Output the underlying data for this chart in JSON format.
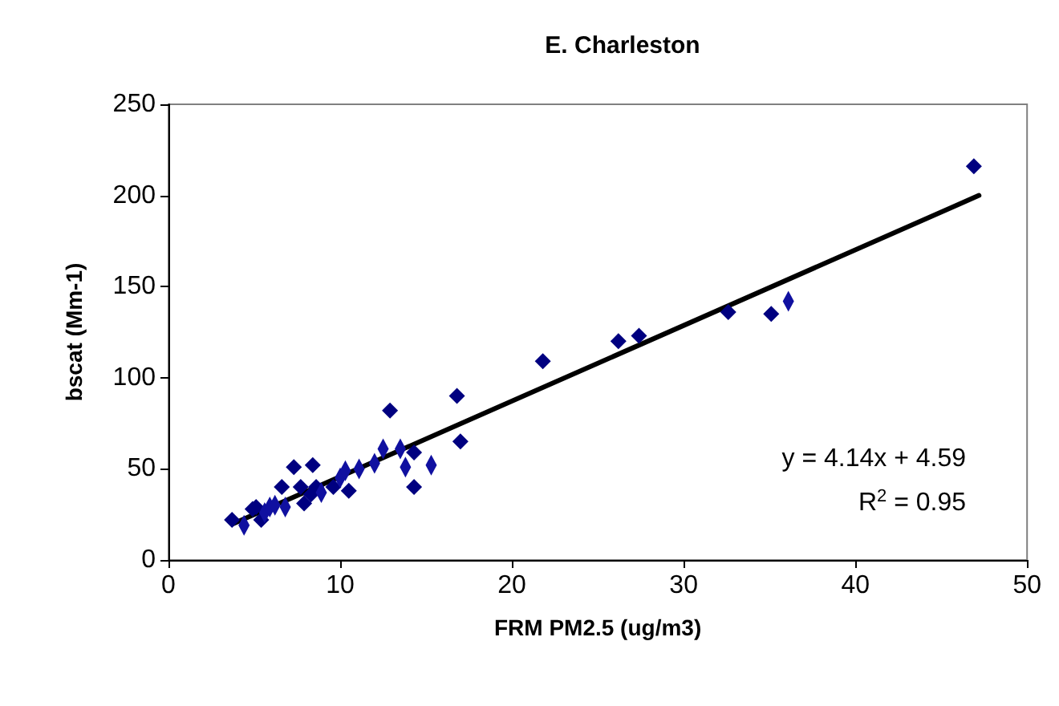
{
  "chart_data": {
    "type": "scatter",
    "title": "E. Charleston",
    "xlabel": "FRM PM2.5 (ug/m3)",
    "ylabel": "bscat (Mm-1)",
    "xlim": [
      0,
      50
    ],
    "xticks": [
      0,
      10,
      20,
      30,
      40,
      50
    ],
    "ylim": [
      0,
      250
    ],
    "yticks": [
      0,
      50,
      100,
      150,
      200,
      250
    ],
    "grid": false,
    "annotations": [
      "y = 4.14x + 4.59",
      "R$^{2}$ = 0.95"
    ],
    "series": [
      {
        "marker": "diamond",
        "color": "#000080",
        "x": [
          3.7,
          4.9,
          5.1,
          5.4,
          6.6,
          7.3,
          7.7,
          7.9,
          8.3,
          8.4,
          8.6,
          9.6,
          10.5,
          12.9,
          14.3,
          14.3,
          16.8,
          17.0,
          21.8,
          26.2,
          27.4,
          32.6,
          35.1,
          46.9
        ],
        "values": [
          22,
          28,
          29,
          22,
          40,
          51,
          40,
          31,
          36,
          52,
          40,
          40,
          38,
          82,
          59,
          40,
          90,
          65,
          109,
          120,
          123,
          136,
          135,
          216
        ]
      },
      {
        "marker": "diamond",
        "color": "#1010a0",
        "x": [
          4.4,
          5.6,
          5.9,
          6.2,
          6.8,
          8.9,
          10.0,
          10.3,
          11.1,
          12.0,
          12.5,
          13.5,
          13.8,
          15.3,
          36.1
        ],
        "values": [
          19,
          26,
          29,
          30,
          29,
          37,
          45,
          49,
          50,
          53,
          61,
          61,
          51,
          52,
          142
        ]
      },
      {
        "type": "line",
        "marker": "none",
        "color": "#000000",
        "x": [
          3.8,
          47.2
        ],
        "values": [
          20,
          200
        ]
      }
    ]
  }
}
